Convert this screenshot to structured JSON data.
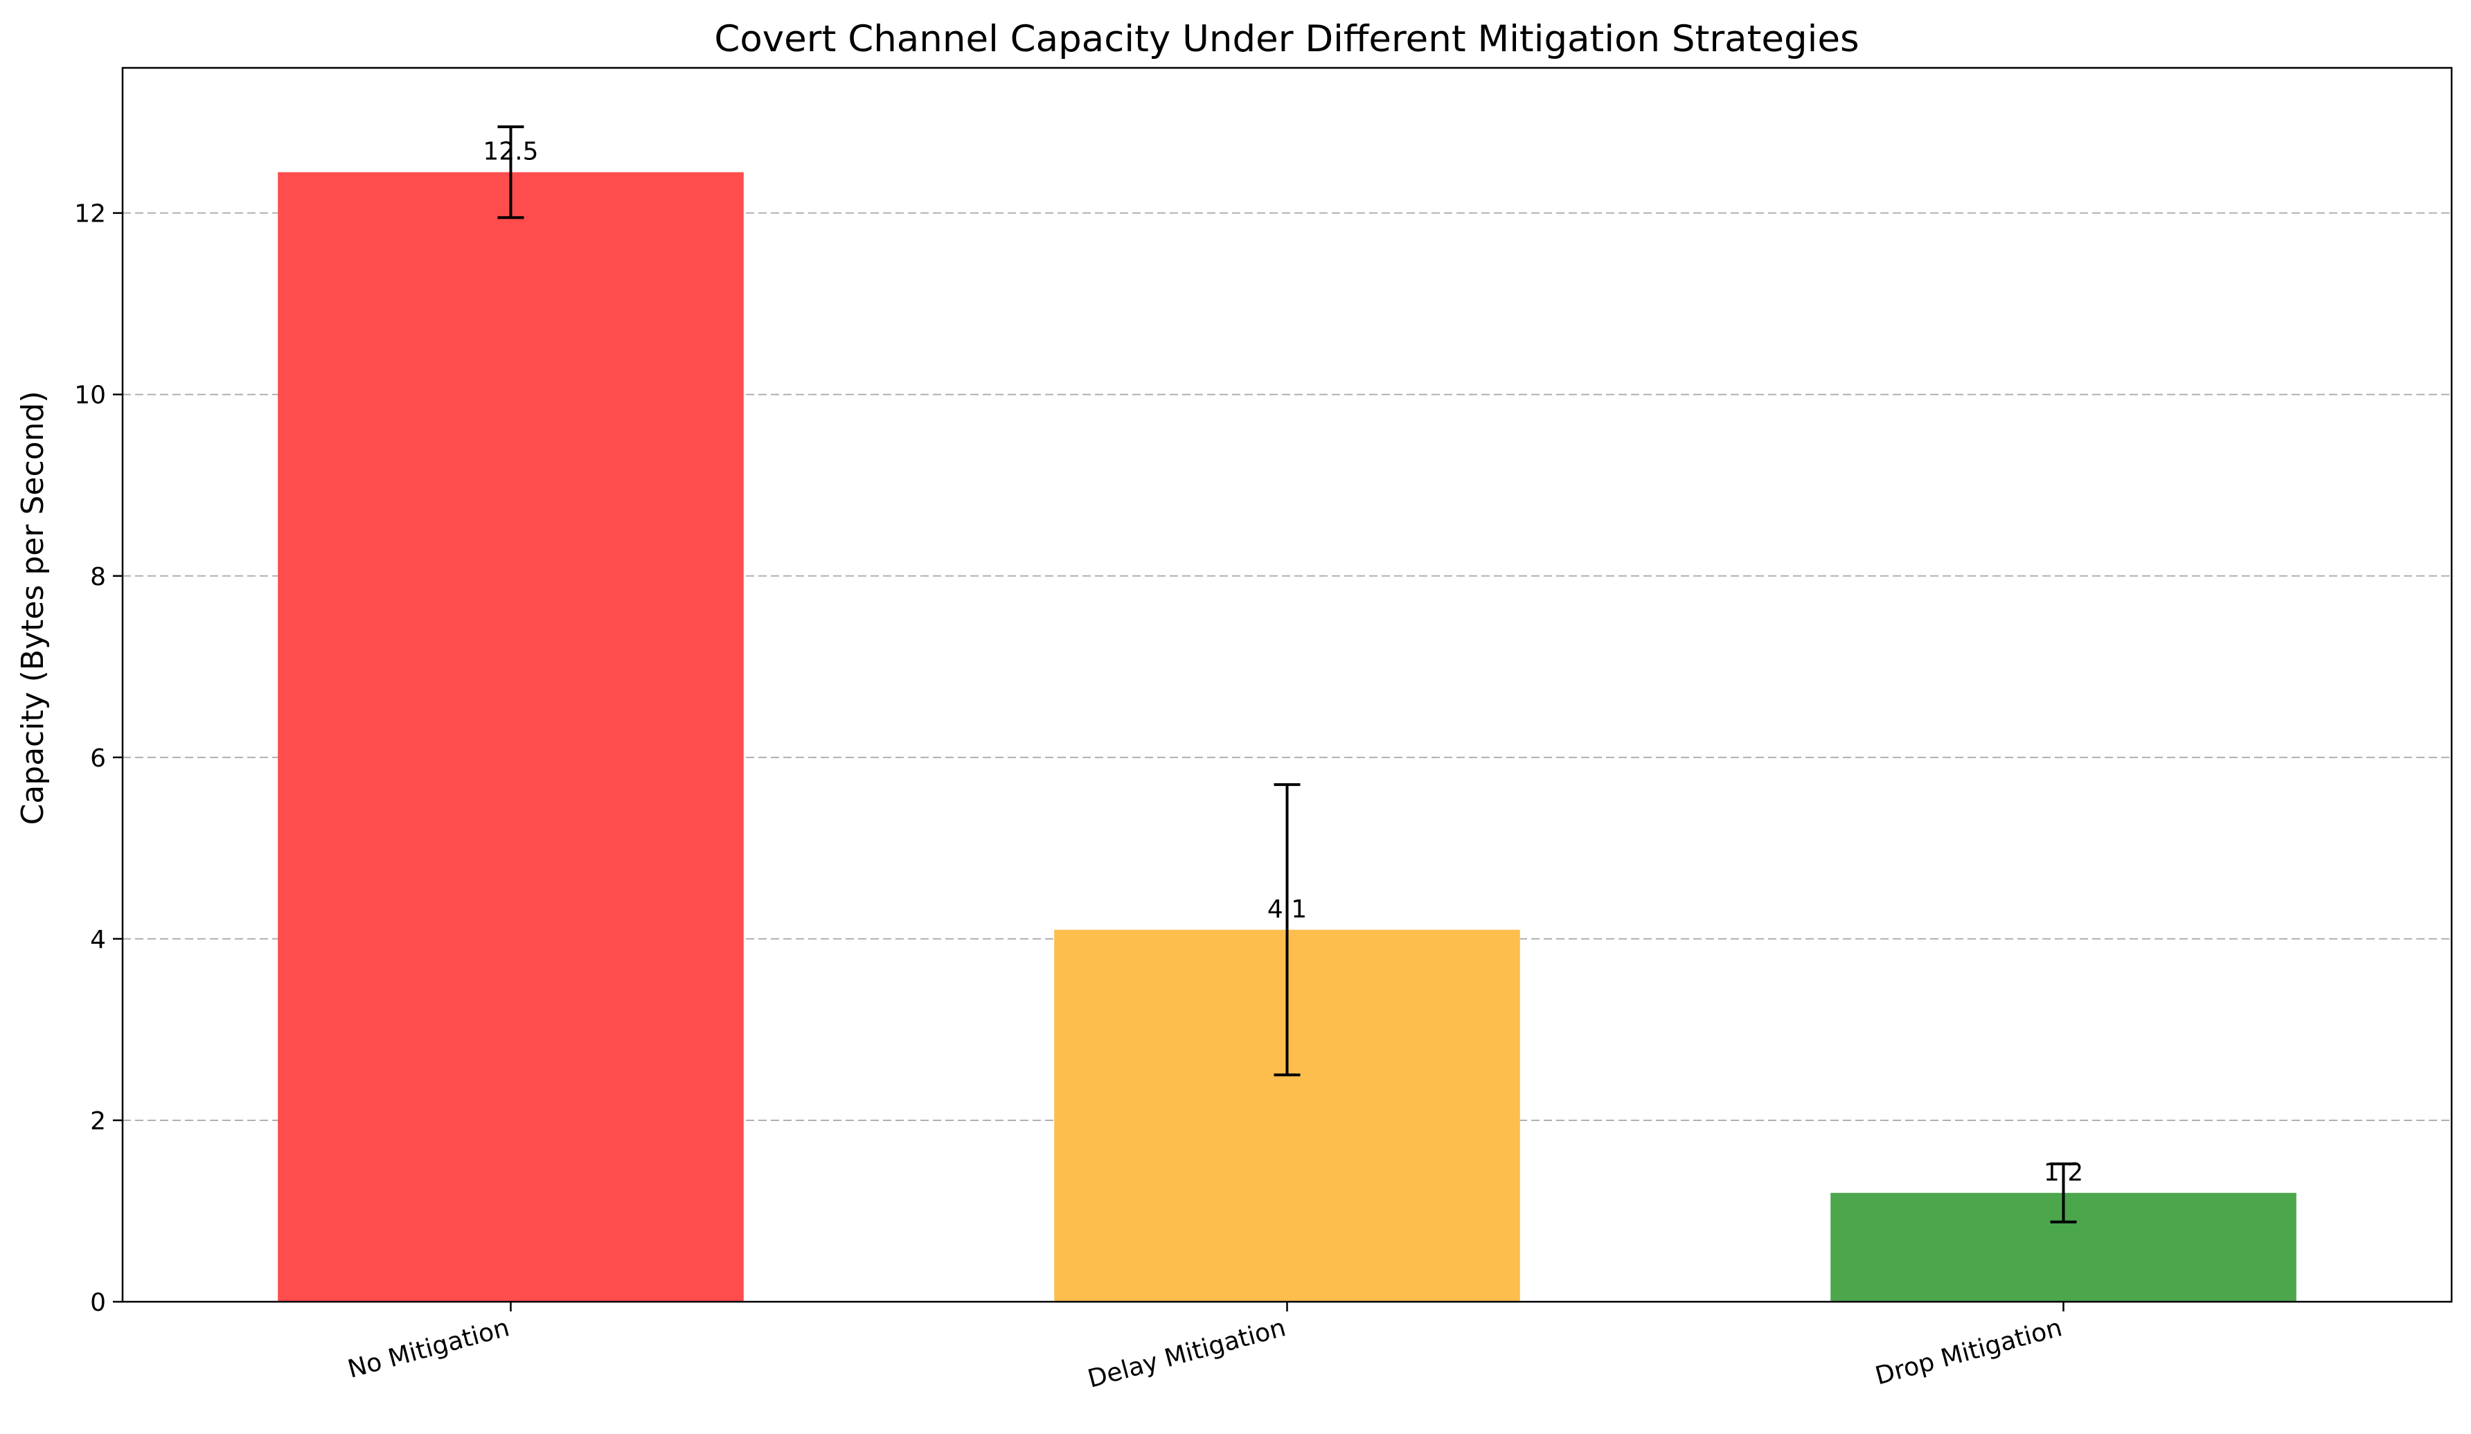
{
  "chart_data": {
    "type": "bar",
    "title": "Covert Channel Capacity Under Different Mitigation Strategies",
    "xlabel": "",
    "ylabel": "Capacity (Bytes per Second)",
    "categories": [
      "No Mitigation",
      "Delay Mitigation",
      "Drop Mitigation"
    ],
    "values": [
      12.45,
      4.1,
      1.2
    ],
    "value_labels": [
      "12.5",
      "4.1",
      "1.2"
    ],
    "error": [
      0.5,
      1.6,
      0.32
    ],
    "colors": [
      "#ff4c4c",
      "#fdbe4d",
      "#4ca64c"
    ],
    "ylim": [
      0,
      13.6
    ],
    "yticks": [
      0,
      2,
      4,
      6,
      8,
      10,
      12
    ],
    "ytick_labels": [
      "0",
      "2",
      "4",
      "6",
      "8",
      "10",
      "12"
    ],
    "grid": "y-dashed",
    "legend": "none"
  }
}
